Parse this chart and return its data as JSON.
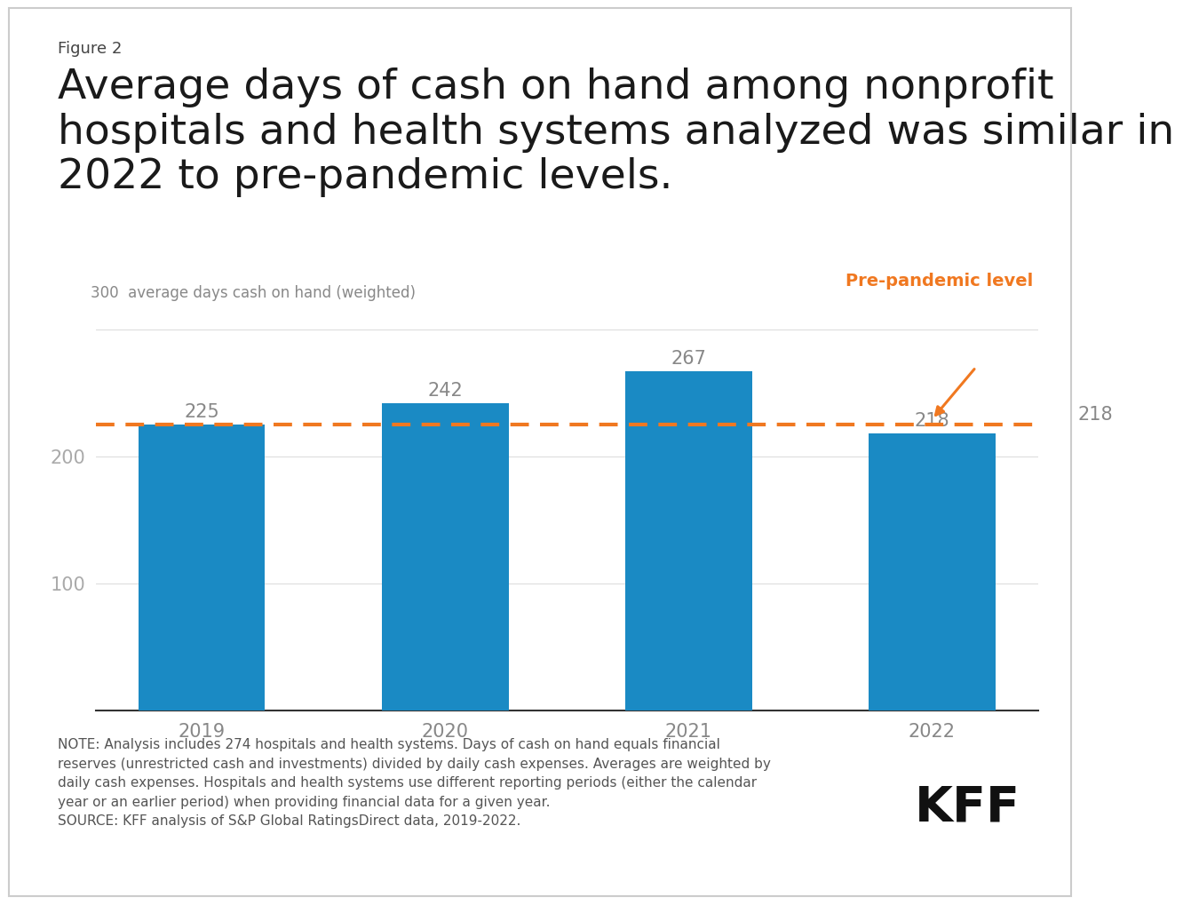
{
  "figure_label": "Figure 2",
  "title": "Average days of cash on hand among nonprofit\nhospitals and health systems analyzed was similar in\n2022 to pre-pandemic levels.",
  "ylabel": "average days cash on hand (weighted)",
  "categories": [
    "2019",
    "2020",
    "2021",
    "2022"
  ],
  "values": [
    225,
    242,
    267,
    218
  ],
  "bar_color": "#1a8ac4",
  "prepandemic_level": 225,
  "prepandemic_line_color": "#f07820",
  "prepandemic_label": "Pre-pandemic level",
  "yticks": [
    100,
    200,
    300
  ],
  "ylim": [
    0,
    310
  ],
  "value_label_color": "#888888",
  "axis_label_color": "#888888",
  "tick_label_color": "#888888",
  "title_color": "#1a1a1a",
  "figure_label_color": "#444444",
  "background_color": "#ffffff",
  "note_text": "NOTE: Analysis includes 274 hospitals and health systems. Days of cash on hand equals financial\nreserves (unrestricted cash and investments) divided by daily cash expenses. Averages are weighted by\ndaily cash expenses. Hospitals and health systems use different reporting periods (either the calendar\nyear or an earlier period) when providing financial data for a given year.\nSOURCE: KFF analysis of S&P Global RatingsDirect data, 2019-2022.",
  "kff_text": "KFF",
  "title_fontsize": 34,
  "figure_label_fontsize": 13,
  "ylabel_fontsize": 12,
  "tick_fontsize": 15,
  "value_fontsize": 15,
  "note_fontsize": 11,
  "kff_fontsize": 40,
  "prepandemic_fontsize": 14,
  "ytick_label_color": "#aaaaaa",
  "grid_color": "#dddddd",
  "border_color": "#cccccc"
}
